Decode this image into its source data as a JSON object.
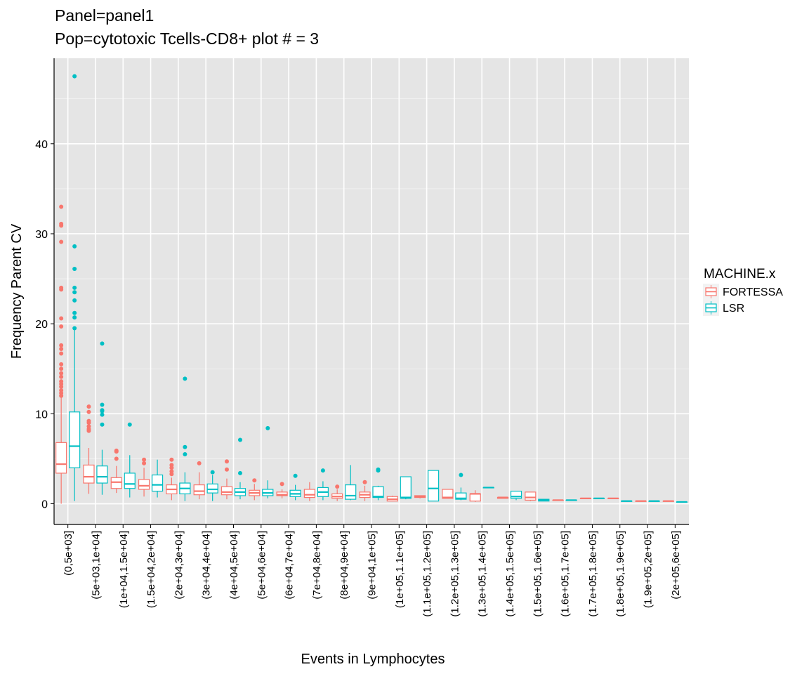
{
  "chart_data": {
    "type": "boxplot",
    "title": "Panel=panel1",
    "subtitle": "Pop=cytotoxic Tcells-CD8+ plot # = 3",
    "xlabel": "Events in Lymphocytes",
    "ylabel": "Frequency Parent CV",
    "ylim": [
      -2.3,
      49.5
    ],
    "yticks": [
      0,
      10,
      20,
      30,
      40
    ],
    "grid": true,
    "legend": {
      "title": "MACHINE.x",
      "placement": "right",
      "entries": [
        {
          "name": "FORTESSA",
          "color": "#F8766D"
        },
        {
          "name": "LSR",
          "color": "#00BFC4"
        }
      ]
    },
    "categories": [
      "(0,5e+03]",
      "(5e+03,1e+04]",
      "(1e+04,1.5e+04]",
      "(1.5e+04,2e+04]",
      "(2e+04,3e+04]",
      "(3e+04,4e+04]",
      "(4e+04,5e+04]",
      "(5e+04,6e+04]",
      "(6e+04,7e+04]",
      "(7e+04,8e+04]",
      "(8e+04,9e+04]",
      "(9e+04,1e+05]",
      "(1e+05,1.1e+05]",
      "(1.1e+05,1.2e+05]",
      "(1.2e+05,1.3e+05]",
      "(1.3e+05,1.4e+05]",
      "(1.4e+05,1.5e+05]",
      "(1.5e+05,1.6e+05]",
      "(1.6e+05,1.7e+05]",
      "(1.7e+05,1.8e+05]",
      "(1.8e+05,1.9e+05]",
      "(1.9e+05,2e+05]",
      "(2e+05,6e+05]"
    ],
    "series": [
      {
        "name": "FORTESSA",
        "color": "#F8766D",
        "boxes": [
          {
            "cat": 0,
            "min": 0.0,
            "q1": 3.4,
            "median": 4.4,
            "q3": 6.8,
            "max": 11.8,
            "outliers": [
              12.0,
              12.3,
              12.6,
              13.0,
              13.3,
              13.6,
              14.1,
              14.5,
              15.0,
              15.5,
              16.7,
              17.2,
              17.6,
              19.7,
              20.6,
              23.8,
              24.0,
              29.1,
              30.9,
              31.1,
              33.0
            ]
          },
          {
            "cat": 1,
            "min": 1.1,
            "q1": 2.3,
            "median": 3.0,
            "q3": 4.3,
            "max": 6.2,
            "outliers": [
              8.1,
              8.3,
              8.6,
              9.0,
              9.2,
              10.2,
              10.8
            ]
          },
          {
            "cat": 2,
            "min": 1.2,
            "q1": 1.7,
            "median": 2.4,
            "q3": 2.9,
            "max": 4.2,
            "outliers": [
              5.0,
              5.8,
              5.9
            ]
          },
          {
            "cat": 3,
            "min": 0.8,
            "q1": 1.6,
            "median": 2.0,
            "q3": 2.7,
            "max": 4.0,
            "outliers": [
              4.5,
              4.9
            ]
          },
          {
            "cat": 4,
            "min": 0.4,
            "q1": 1.1,
            "median": 1.6,
            "q3": 2.1,
            "max": 2.9,
            "outliers": [
              3.3,
              3.6,
              4.0,
              4.3,
              4.9
            ]
          },
          {
            "cat": 5,
            "min": 0.5,
            "q1": 1.0,
            "median": 1.4,
            "q3": 2.1,
            "max": 3.5,
            "outliers": [
              4.5
            ]
          },
          {
            "cat": 6,
            "min": 0.5,
            "q1": 1.0,
            "median": 1.3,
            "q3": 1.9,
            "max": 2.8,
            "outliers": [
              3.8,
              4.7
            ]
          },
          {
            "cat": 7,
            "min": 0.4,
            "q1": 0.9,
            "median": 1.2,
            "q3": 1.5,
            "max": 2.2,
            "outliers": [
              2.6
            ]
          },
          {
            "cat": 8,
            "min": 0.6,
            "q1": 0.9,
            "median": 1.0,
            "q3": 1.3,
            "max": 1.6,
            "outliers": [
              2.2
            ]
          },
          {
            "cat": 9,
            "min": 0.3,
            "q1": 0.7,
            "median": 1.0,
            "q3": 1.6,
            "max": 2.4,
            "outliers": []
          },
          {
            "cat": 10,
            "min": 0.3,
            "q1": 0.6,
            "median": 0.8,
            "q3": 1.1,
            "max": 1.6,
            "outliers": [
              1.9
            ]
          },
          {
            "cat": 11,
            "min": 0.3,
            "q1": 0.7,
            "median": 1.0,
            "q3": 1.3,
            "max": 2.0,
            "outliers": [
              2.4
            ]
          },
          {
            "cat": 12,
            "min": 0.3,
            "q1": 0.3,
            "median": 0.5,
            "q3": 0.8,
            "max": 0.9,
            "outliers": []
          },
          {
            "cat": 13,
            "min": 0.6,
            "q1": 0.7,
            "median": 0.8,
            "q3": 0.9,
            "max": 0.9,
            "outliers": []
          },
          {
            "cat": 14,
            "min": 0.6,
            "q1": 0.6,
            "median": 0.7,
            "q3": 1.6,
            "max": 1.6,
            "outliers": []
          },
          {
            "cat": 15,
            "min": 0.2,
            "q1": 0.3,
            "median": 1.1,
            "q3": 1.1,
            "max": 1.5,
            "outliers": []
          },
          {
            "cat": 16,
            "min": 0.6,
            "q1": 0.6,
            "median": 0.7,
            "q3": 0.7,
            "max": 0.7,
            "outliers": []
          },
          {
            "cat": 17,
            "min": 0.3,
            "q1": 0.4,
            "median": 0.7,
            "q3": 1.3,
            "max": 1.3,
            "outliers": []
          },
          {
            "cat": 18,
            "min": 0.4,
            "q1": 0.4,
            "median": 0.4,
            "q3": 0.4,
            "max": 0.4,
            "outliers": []
          },
          {
            "cat": 19,
            "min": 0.6,
            "q1": 0.6,
            "median": 0.6,
            "q3": 0.6,
            "max": 0.6,
            "outliers": []
          },
          {
            "cat": 20,
            "min": 0.6,
            "q1": 0.6,
            "median": 0.6,
            "q3": 0.6,
            "max": 0.6,
            "outliers": []
          },
          {
            "cat": 21,
            "min": 0.3,
            "q1": 0.3,
            "median": 0.3,
            "q3": 0.3,
            "max": 0.3,
            "outliers": []
          },
          {
            "cat": 22,
            "min": 0.3,
            "q1": 0.3,
            "median": 0.3,
            "q3": 0.3,
            "max": 0.3,
            "outliers": []
          }
        ]
      },
      {
        "name": "LSR",
        "color": "#00BFC4",
        "boxes": [
          {
            "cat": 0,
            "min": 0.3,
            "q1": 4.0,
            "median": 6.4,
            "q3": 10.2,
            "max": 19.3,
            "outliers": [
              19.5,
              20.7,
              21.2,
              22.6,
              23.5,
              24.0,
              26.1,
              28.6,
              47.5
            ]
          },
          {
            "cat": 1,
            "min": 1.0,
            "q1": 2.3,
            "median": 3.0,
            "q3": 4.2,
            "max": 6.0,
            "outliers": [
              8.8,
              9.9,
              10.3,
              10.4,
              11.0,
              17.8
            ]
          },
          {
            "cat": 2,
            "min": 0.7,
            "q1": 1.7,
            "median": 2.2,
            "q3": 3.4,
            "max": 5.4,
            "outliers": [
              8.8
            ]
          },
          {
            "cat": 3,
            "min": 0.7,
            "q1": 1.4,
            "median": 2.1,
            "q3": 3.2,
            "max": 4.9,
            "outliers": []
          },
          {
            "cat": 4,
            "min": 0.3,
            "q1": 1.1,
            "median": 1.7,
            "q3": 2.3,
            "max": 3.5,
            "outliers": [
              5.5,
              6.3,
              13.9
            ]
          },
          {
            "cat": 5,
            "min": 0.3,
            "q1": 1.2,
            "median": 1.6,
            "q3": 2.2,
            "max": 3.2,
            "outliers": [
              3.5
            ]
          },
          {
            "cat": 6,
            "min": 0.5,
            "q1": 0.9,
            "median": 1.3,
            "q3": 1.7,
            "max": 2.4,
            "outliers": [
              3.4,
              7.1
            ]
          },
          {
            "cat": 7,
            "min": 0.6,
            "q1": 0.9,
            "median": 1.2,
            "q3": 1.6,
            "max": 2.6,
            "outliers": [
              8.4
            ]
          },
          {
            "cat": 8,
            "min": 0.4,
            "q1": 0.8,
            "median": 1.1,
            "q3": 1.5,
            "max": 2.1,
            "outliers": [
              3.1
            ]
          },
          {
            "cat": 9,
            "min": 0.4,
            "q1": 0.8,
            "median": 1.3,
            "q3": 1.8,
            "max": 2.5,
            "outliers": [
              3.7
            ]
          },
          {
            "cat": 10,
            "min": 0.4,
            "q1": 0.5,
            "median": 0.9,
            "q3": 2.1,
            "max": 4.3,
            "outliers": []
          },
          {
            "cat": 11,
            "min": 0.4,
            "q1": 0.7,
            "median": 0.8,
            "q3": 1.9,
            "max": 2.0,
            "outliers": [
              3.7,
              3.8
            ]
          },
          {
            "cat": 12,
            "min": 0.5,
            "q1": 0.6,
            "median": 0.7,
            "q3": 3.0,
            "max": 3.0,
            "outliers": []
          },
          {
            "cat": 13,
            "min": 0.3,
            "q1": 0.3,
            "median": 1.7,
            "q3": 3.7,
            "max": 3.7,
            "outliers": []
          },
          {
            "cat": 14,
            "min": 0.4,
            "q1": 0.5,
            "median": 0.6,
            "q3": 1.2,
            "max": 1.8,
            "outliers": [
              3.2
            ]
          },
          {
            "cat": 15,
            "min": 1.8,
            "q1": 1.8,
            "median": 1.8,
            "q3": 1.8,
            "max": 1.8,
            "outliers": []
          },
          {
            "cat": 16,
            "min": 0.4,
            "q1": 0.6,
            "median": 0.8,
            "q3": 1.4,
            "max": 1.4,
            "outliers": []
          },
          {
            "cat": 17,
            "min": 0.3,
            "q1": 0.3,
            "median": 0.4,
            "q3": 0.5,
            "max": 0.5,
            "outliers": []
          },
          {
            "cat": 18,
            "min": 0.4,
            "q1": 0.4,
            "median": 0.4,
            "q3": 0.4,
            "max": 0.4,
            "outliers": []
          },
          {
            "cat": 19,
            "min": 0.6,
            "q1": 0.6,
            "median": 0.6,
            "q3": 0.6,
            "max": 0.6,
            "outliers": []
          },
          {
            "cat": 20,
            "min": 0.3,
            "q1": 0.3,
            "median": 0.3,
            "q3": 0.3,
            "max": 0.3,
            "outliers": []
          },
          {
            "cat": 21,
            "min": 0.3,
            "q1": 0.3,
            "median": 0.3,
            "q3": 0.3,
            "max": 0.3,
            "outliers": []
          },
          {
            "cat": 22,
            "min": 0.2,
            "q1": 0.2,
            "median": 0.2,
            "q3": 0.2,
            "max": 0.2,
            "outliers": []
          }
        ]
      }
    ]
  }
}
